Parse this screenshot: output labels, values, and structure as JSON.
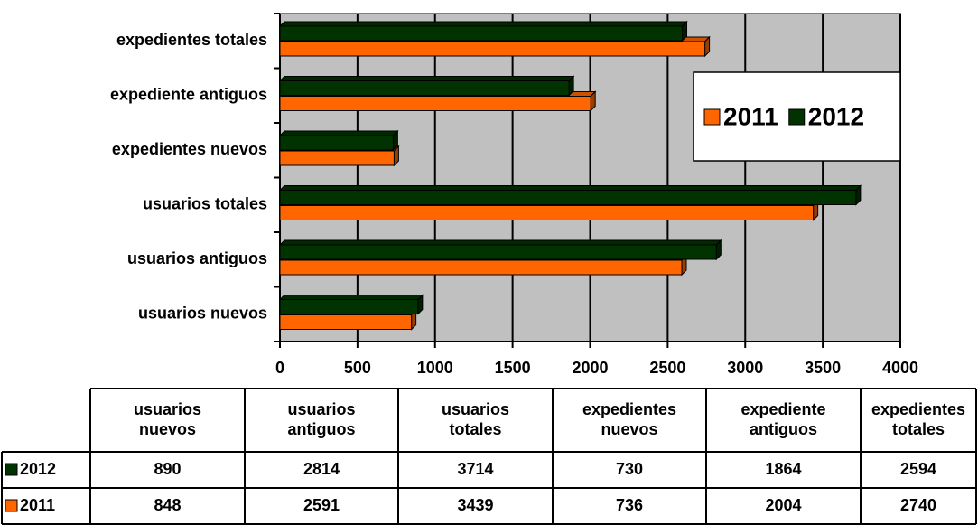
{
  "chart_data": {
    "type": "bar",
    "orientation": "horizontal",
    "categories": [
      "usuarios nuevos",
      "usuarios antiguos",
      "usuarios totales",
      "expedientes nuevos",
      "expediente antiguos",
      "expedientes totales"
    ],
    "series": [
      {
        "name": "2011",
        "color": "#ff6600",
        "values": [
          848,
          2591,
          3439,
          736,
          2004,
          2740
        ]
      },
      {
        "name": "2012",
        "color": "#003300",
        "values": [
          890,
          2814,
          3714,
          730,
          1864,
          2594
        ]
      }
    ],
    "xlim": [
      0,
      4000
    ],
    "xticks": [
      0,
      500,
      1000,
      1500,
      2000,
      2500,
      3000,
      3500,
      4000
    ],
    "grid": true,
    "legend": "right",
    "plot_background": "#c0c0c0",
    "data_table": true
  }
}
